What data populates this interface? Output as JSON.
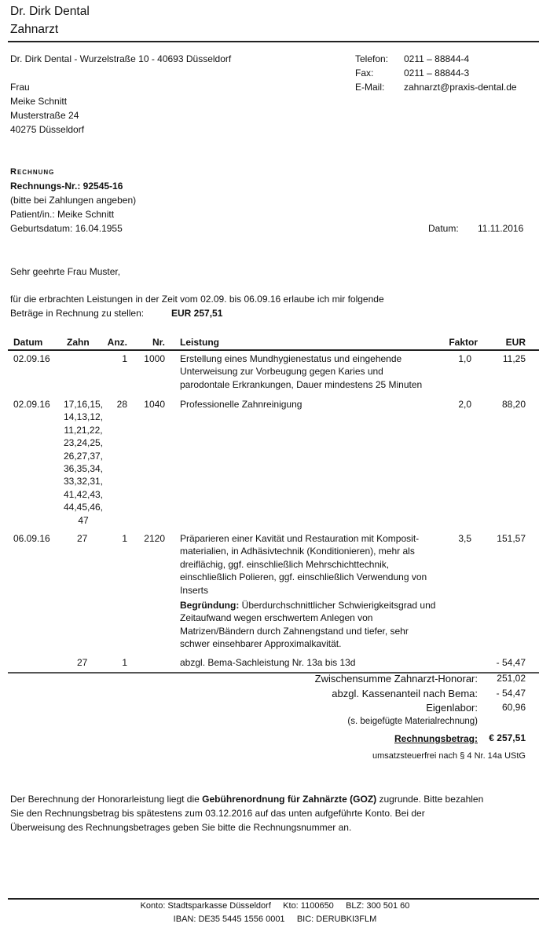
{
  "letterhead": {
    "name": "Dr. Dirk Dental",
    "title": "Zahnarzt"
  },
  "sender_line": "Dr. Dirk Dental - Wurzelstraße 10 - 40693 Düsseldorf",
  "contact": [
    {
      "label": "Telefon:",
      "value": "0211 – 88844-4"
    },
    {
      "label": "Fax:",
      "value": "0211 – 88844-3"
    },
    {
      "label": "E-Mail:",
      "value": "zahnarzt@praxis-dental.de"
    }
  ],
  "recipient": [
    "Frau",
    "Meike Schnitt",
    "Musterstraße 24",
    "40275 Düsseldorf"
  ],
  "invoice": {
    "heading": "Rechnung",
    "number": "Rechnungs-Nr.: 92545-16",
    "note": "(bitte bei Zahlungen angeben)",
    "patient": "Patient/in.: Meike Schnitt",
    "birth": "Geburtsdatum: 16.04.1955",
    "date_label": "Datum:",
    "date": "11.11.2016"
  },
  "salutation": "Sehr geehrte Frau Muster,",
  "intro": {
    "line1": "für die erbrachten Leistungen in der Zeit vom 02.09. bis 06.09.16 erlaube ich mir folgende",
    "line2": "Beträge in Rechnung zu stellen:",
    "amount": "EUR 257,51"
  },
  "table": {
    "headers": {
      "datum": "Datum",
      "zahn": "Zahn",
      "anz": "Anz.",
      "nr": "Nr.",
      "leistung": "Leistung",
      "faktor": "Faktor",
      "eur": "EUR"
    },
    "rows": [
      {
        "datum": "02.09.16",
        "zahn": "",
        "anz": "1",
        "nr": "1000",
        "leistung": [
          "Erstellung eines Mundhygienestatus und eingehende",
          "Unterweisung zur Vorbeugung gegen Karies und",
          "parodontale Erkrankungen, Dauer mindestens 25 Minuten"
        ],
        "faktor": "1,0",
        "eur": "11,25"
      },
      {
        "datum": "02.09.16",
        "zahn": [
          "17,16,15,",
          "14,13,12,",
          "11,21,22,",
          "23,24,25,",
          "26,27,37,",
          "36,35,34,",
          "33,32,31,",
          "41,42,43,",
          "44,45,46,",
          "47"
        ],
        "anz": "28",
        "nr": "1040",
        "leistung": [
          "Professionelle Zahnreinigung"
        ],
        "faktor": "2,0",
        "eur": "88,20"
      },
      {
        "datum": "06.09.16",
        "zahn": "27",
        "anz": "1",
        "nr": "2120",
        "leistung": [
          "Präparieren einer Kavität und Restauration mit Komposit-",
          "materialien, in Adhäsivtechnik (Konditionieren), mehr als",
          "dreiflächig, ggf. einschließlich Mehrschichttechnik,",
          "einschließlich Polieren, ggf. einschließlich Verwendung von",
          "Inserts"
        ],
        "begruendung_label": "Begründung:",
        "begruendung": [
          " Überdurchschnittlicher Schwierigkeitsgrad und",
          "Zeitaufwand wegen erschwertem Anlegen von",
          "Matrizen/Bändern durch Zahnengstand und tiefer, sehr",
          "schwer einsehbarer Approximalkavität."
        ],
        "faktor": "3,5",
        "eur": "151,57"
      },
      {
        "datum": "",
        "zahn": "27",
        "anz": "1",
        "nr": "",
        "leistung": [
          "abzgl. Bema-Sachleistung Nr. 13a bis 13d"
        ],
        "faktor": "",
        "eur": "- 54,47"
      }
    ]
  },
  "totals": {
    "subtotal_label": "Zwischensumme Zahnarzt-Honorar:",
    "subtotal": "251,02",
    "kasse_label": "abzgl. Kassenanteil nach Bema:",
    "kasse": "- 54,47",
    "labor_label": "Eigenlabor:",
    "labor": "60,96",
    "labor_note": "(s. beigefügte Materialrechnung)",
    "total_label": "Rechnungsbetrag:",
    "total": "€ 257,51",
    "tax_note": "umsatzsteuerfrei nach § 4 Nr. 14a UStG"
  },
  "closing": {
    "p1a": "Der Berechnung der Honorarleistung liegt die ",
    "p1b": "Gebührenordnung für Zahnärzte (GOZ)",
    "p1c": " zugrunde. Bitte bezahlen",
    "line2": "Sie den Rechnungsbetrag bis spätestens zum 03.12.2016 auf das unten aufgeführte Konto. Bei der",
    "line3": "Überweisung des Rechnungsbetrages geben Sie bitte die Rechnungsnummer an."
  },
  "footer": {
    "line1": "Konto: Stadtsparkasse Düsseldorf     Kto: 1100650     BLZ: 300 501 60",
    "line2": "IBAN: DE35 5445 1556 0001     BIC: DERUBKI3FLM"
  }
}
